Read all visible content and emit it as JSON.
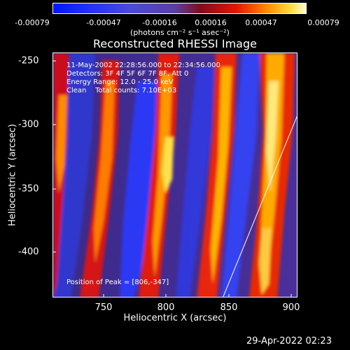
{
  "colorbar": {
    "ticks": [
      "-0.00079",
      "-0.00047",
      "-0.00016",
      "0.00016",
      "0.00047",
      "0.00079"
    ],
    "units": "(photons cm⁻² s⁻¹ asec⁻²)"
  },
  "title": "Reconstructed RHESSI Image",
  "info": {
    "time": "11-May-2002 22:28:56.000 to 22:34:56.000",
    "detectors": "Detectors: 3F 4F 5F 6F 7F 8F, Att 0",
    "energy": "Energy Range: 12.0 - 25.0 keV",
    "clean": "Clean    Total counts: 7.10E+03",
    "peak": "Position of Peak = [806,-347]"
  },
  "axes": {
    "xlabel": "Heliocentric X (arcsec)",
    "ylabel": "Heliocentric Y (arcsec)",
    "xticks": [
      "750",
      "800",
      "850",
      "900"
    ],
    "yticks": [
      "-250",
      "-300",
      "-350",
      "-400"
    ]
  },
  "timestamp": "29-Apr-2022 02:23",
  "colors": {
    "background": "#000000",
    "limb_line": "#ffffff"
  }
}
